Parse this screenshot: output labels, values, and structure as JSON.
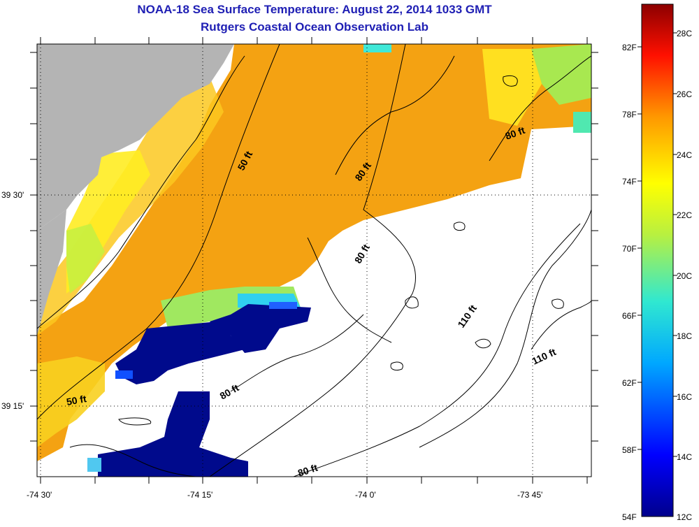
{
  "title": {
    "line1": "NOAA-18 Sea Surface Temperature:  August 22, 2014 1033 GMT",
    "line2": "Rutgers Coastal Ocean Observation Lab"
  },
  "map": {
    "lat_labels": [
      "39 30'",
      "39 15'"
    ],
    "lon_labels": [
      "-74 30'",
      "-74 15'",
      "-74 0'",
      "-73 45'"
    ],
    "contour_labels": [
      "50 ft",
      "50 ft",
      "80 ft",
      "80 ft",
      "80 ft",
      "80 ft",
      "80 ft",
      "110 ft",
      "110 ft"
    ],
    "colors": {
      "land": "#b4b4b4",
      "no_data": "#ffffff",
      "warm": "#f5a010",
      "cold": "#000a8c"
    }
  },
  "colorbar": {
    "fahrenheit_labels": [
      "82F",
      "78F",
      "74F",
      "70F",
      "66F",
      "62F",
      "58F",
      "54F"
    ],
    "celsius_labels": [
      "28C",
      "26C",
      "24C",
      "22C",
      "20C",
      "18C",
      "16C",
      "14C",
      "12C"
    ]
  }
}
